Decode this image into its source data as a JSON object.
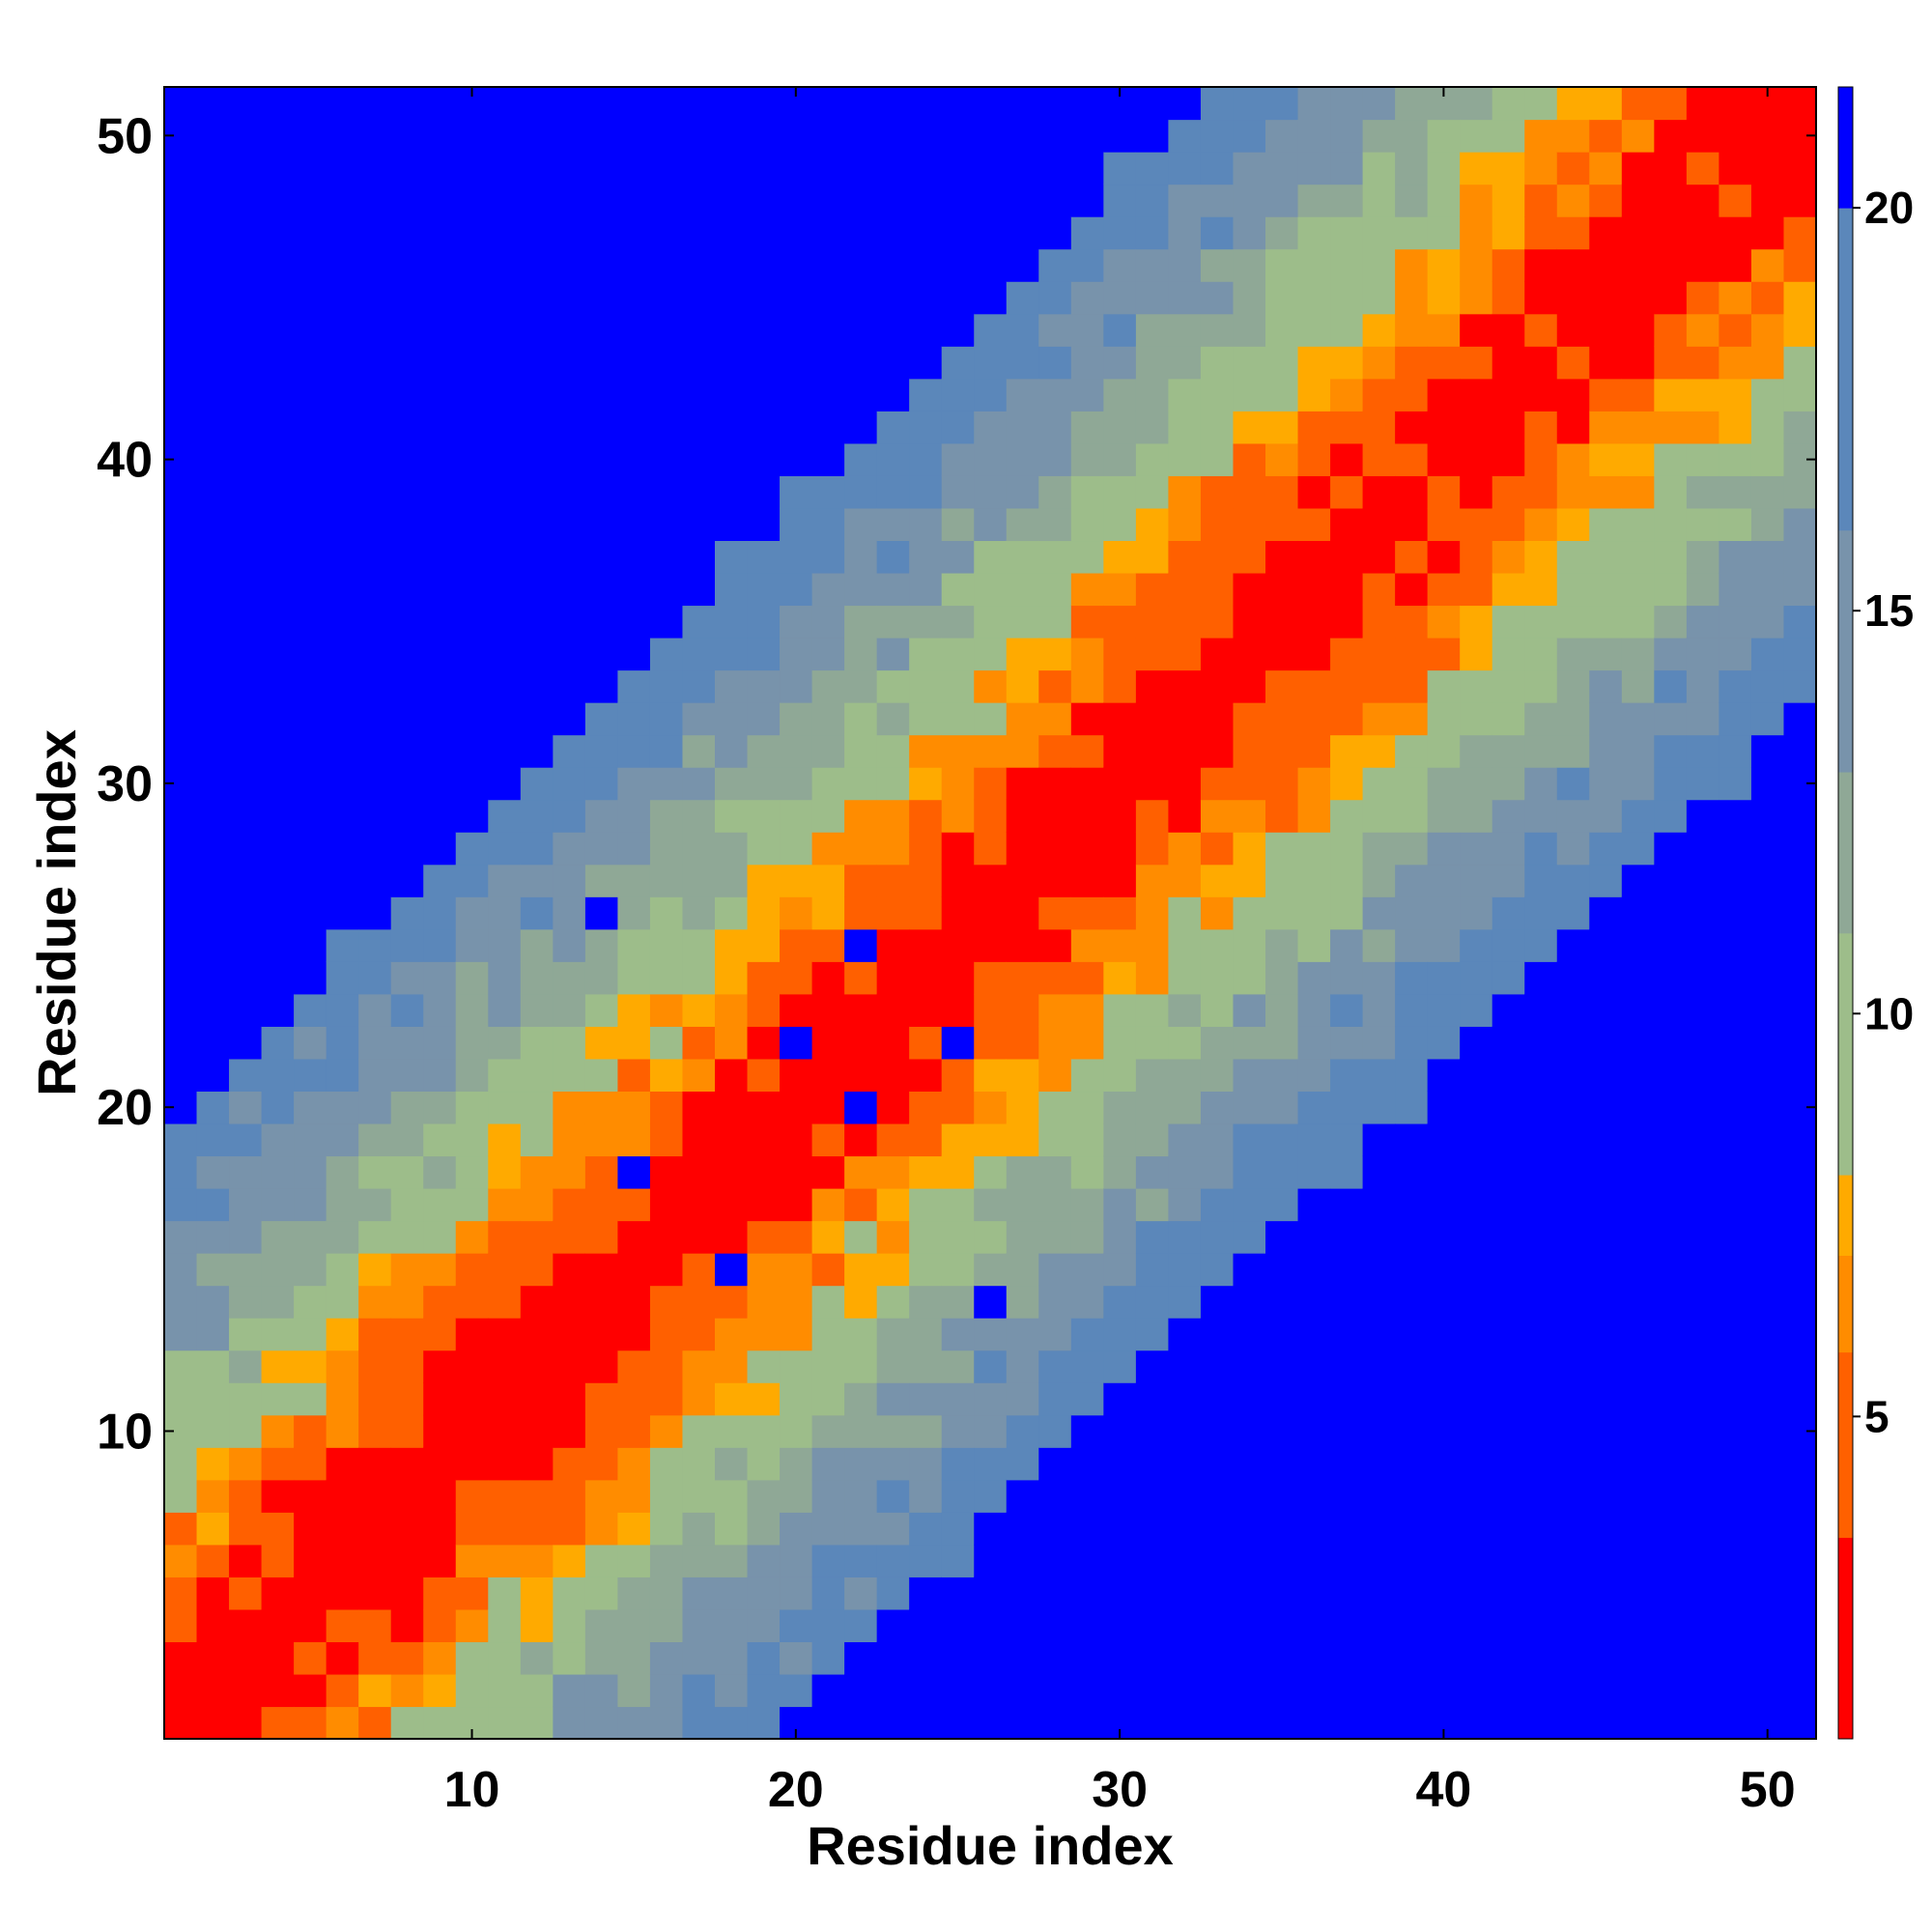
{
  "chart_data": {
    "type": "heatmap",
    "title": "",
    "xlabel": "Residue index",
    "ylabel": "Residue index",
    "n": 51,
    "x_range": [
      1,
      51
    ],
    "y_range": [
      1,
      51
    ],
    "x_ticks": [
      10,
      20,
      30,
      40,
      50
    ],
    "y_ticks": [
      10,
      20,
      30,
      40,
      50
    ],
    "colorbar": {
      "range": [
        1,
        21.5
      ],
      "ticks": [
        5,
        10,
        15,
        20
      ],
      "stops": [
        {
          "max": 3.5,
          "color": "#ff0000"
        },
        {
          "max": 5.8,
          "color": "#ff6000"
        },
        {
          "max": 7.0,
          "color": "#ff8c00"
        },
        {
          "max": 8.0,
          "color": "#ffaa00"
        },
        {
          "max": 11.0,
          "color": "#9dbd8a"
        },
        {
          "max": 13.0,
          "color": "#8fa896"
        },
        {
          "max": 16.0,
          "color": "#7893ab"
        },
        {
          "max": 20.0,
          "color": "#5b87ba"
        },
        {
          "max": 99,
          "color": "#0000ff"
        }
      ]
    },
    "cutoff": 20,
    "value_model": "symmetric distance matrix; value grows with |i - j| (≈0.95·|i-j|+1.2), saturating above 20",
    "outlier_cells": [
      [
        15,
        18
      ],
      [
        18,
        15
      ],
      [
        22,
        20
      ],
      [
        20,
        22
      ],
      [
        25,
        22
      ],
      [
        22,
        25
      ],
      [
        26,
        14
      ],
      [
        14,
        26
      ]
    ]
  }
}
